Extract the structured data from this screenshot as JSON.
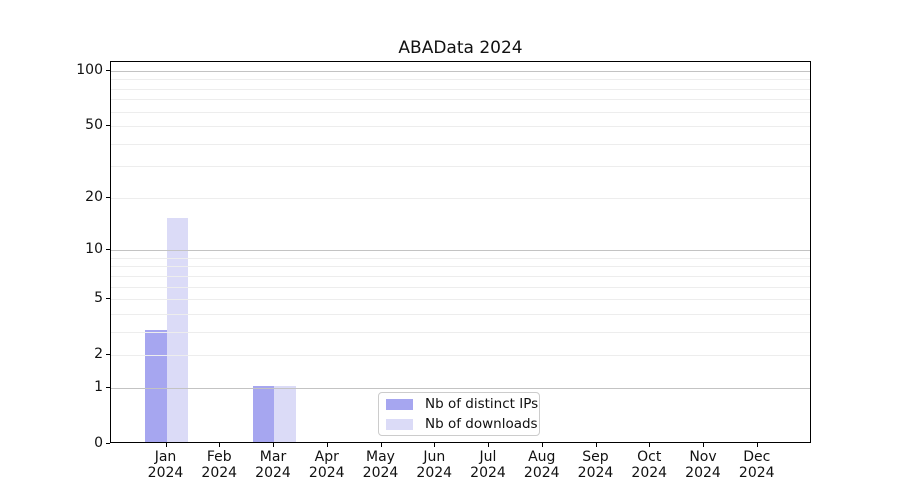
{
  "figure": {
    "title": "ABAData 2024"
  },
  "chart_data": {
    "type": "bar",
    "title": "ABAData 2024",
    "xlabel": "",
    "ylabel": "",
    "yscale": "log1p",
    "ylim": [
      0,
      112
    ],
    "grid": "on",
    "y_ticks_labeled": [
      0,
      1,
      2,
      5,
      10,
      20,
      50,
      100
    ],
    "y_major_gridlines": [
      1,
      10,
      100
    ],
    "y_minor_gridlines": [
      2,
      3,
      4,
      5,
      6,
      7,
      8,
      9,
      20,
      30,
      40,
      50,
      60,
      70,
      80,
      90
    ],
    "categories": [
      {
        "month": "Jan",
        "year": "2024"
      },
      {
        "month": "Feb",
        "year": "2024"
      },
      {
        "month": "Mar",
        "year": "2024"
      },
      {
        "month": "Apr",
        "year": "2024"
      },
      {
        "month": "May",
        "year": "2024"
      },
      {
        "month": "Jun",
        "year": "2024"
      },
      {
        "month": "Jul",
        "year": "2024"
      },
      {
        "month": "Aug",
        "year": "2024"
      },
      {
        "month": "Sep",
        "year": "2024"
      },
      {
        "month": "Oct",
        "year": "2024"
      },
      {
        "month": "Nov",
        "year": "2024"
      },
      {
        "month": "Dec",
        "year": "2024"
      }
    ],
    "series": [
      {
        "name": "Nb of distinct IPs",
        "color": "#a6a6f0",
        "values": [
          3,
          0,
          1,
          0,
          0,
          0,
          0,
          0,
          0,
          0,
          0,
          0
        ]
      },
      {
        "name": "Nb of downloads",
        "color": "#dbdbf7",
        "values": [
          15,
          0,
          1,
          0,
          0,
          0,
          0,
          0,
          0,
          0,
          0,
          0
        ]
      }
    ],
    "legend": {
      "position": "lower center",
      "entries": [
        "Nb of distinct IPs",
        "Nb of downloads"
      ]
    },
    "colors": {
      "major_grid": "#c3c3c3",
      "minor_grid": "#ededed",
      "spine": "#000000",
      "text": "#111111",
      "background": "#ffffff"
    }
  }
}
